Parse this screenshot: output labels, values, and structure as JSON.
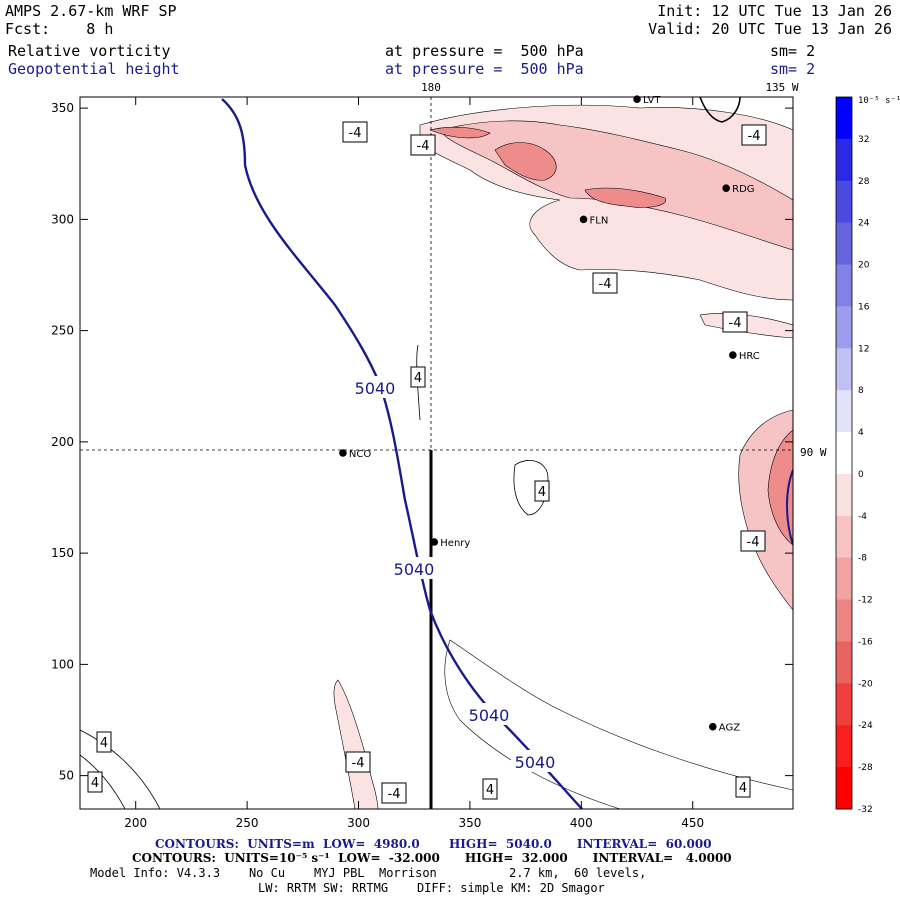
{
  "header": {
    "left1": "AMPS 2.67-km WRF SP",
    "left2": "Fcst:    8 h",
    "right1": "Init: 12 UTC Tue 13 Jan 26",
    "right2": "Valid: 20 UTC Tue 13 Jan 26",
    "field1": "Relative vorticity",
    "field2": "Geopotential height",
    "press1": "at pressure =  500 hPa",
    "press2": "at pressure =  500 hPa",
    "sm1": "sm= 2",
    "sm2": "sm= 2"
  },
  "chart_data": {
    "type": "contour",
    "x_ticks": [
      200,
      250,
      300,
      350,
      400,
      450
    ],
    "y_ticks": [
      50,
      100,
      150,
      200,
      250,
      300,
      350
    ],
    "xlim": [
      175,
      495
    ],
    "ylim": [
      35,
      355
    ],
    "longitude_labels": [
      "180",
      "135 W",
      "90 W"
    ],
    "geopotential_contour_labels": [
      "5040",
      "5040",
      "5040",
      "5040"
    ],
    "vorticity_labels": [
      "-4",
      "-4",
      "-4",
      "-4",
      "-4",
      "-4",
      "-4",
      "-4",
      "4",
      "4",
      "4",
      "4",
      "4",
      "4"
    ],
    "stations": [
      {
        "name": "NCO",
        "x": 293,
        "y": 195
      },
      {
        "name": "Henry",
        "x": 334,
        "y": 155
      },
      {
        "name": "RDG",
        "x": 465,
        "y": 314
      },
      {
        "name": "FLN",
        "x": 401,
        "y": 300
      },
      {
        "name": "HRC",
        "x": 468,
        "y": 239
      },
      {
        "name": "AGZ",
        "x": 459,
        "y": 72
      },
      {
        "name": "LVT",
        "x": 425,
        "y": 354
      }
    ],
    "colorbar": {
      "unit": "10⁻⁵ s⁻¹",
      "labels": [
        "32",
        "28",
        "24",
        "20",
        "16",
        "12",
        "8",
        "4",
        "0",
        "-4",
        "-8",
        "-12",
        "-16",
        "-20",
        "-24",
        "-28",
        "-32"
      ],
      "colors_top_to_bottom": [
        "#0000ff",
        "#2a2ae6",
        "#4a4ae0",
        "#6565e0",
        "#8181e6",
        "#9d9dee",
        "#c0c0f4",
        "#e2e2fa",
        "#ffffff",
        "#fbe2e2",
        "#f7c3c3",
        "#f2a3a3",
        "#ee8585",
        "#ea6363",
        "#f03f3f",
        "#f71f1f",
        "#ff0000"
      ]
    }
  },
  "footer": {
    "l1": "CONTOURS:  UNITS=m  LOW=  4980.0       HIGH=  5040.0      INTERVAL=  60.000",
    "l2": "CONTOURS:  UNITS=10⁻⁵ s⁻¹  LOW=  -32.000      HIGH=  32.000      INTERVAL=   4.0000",
    "l3": "Model Info: V4.3.3    No Cu    MYJ PBL  Morrison          2.7 km,  60 levels,",
    "l4": "LW: RRTM SW: RRTMG    DIFF: simple KM: 2D Smagor"
  }
}
